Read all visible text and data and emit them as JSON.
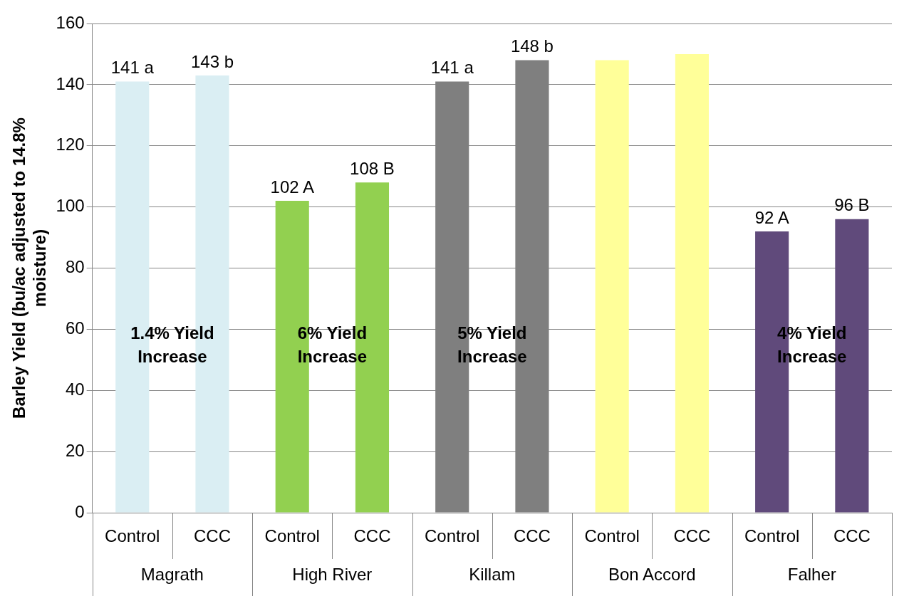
{
  "chart_data": {
    "type": "bar",
    "ylabel": "Barley Yield (bu/ac adjusted to 14.8% moisture)",
    "categories": [
      "Control",
      "CCC",
      "Control",
      "CCC",
      "Control",
      "CCC",
      "Control",
      "CCC",
      "Control",
      "CCC"
    ],
    "values": [
      141,
      143,
      102,
      108,
      141,
      148,
      148,
      150,
      92,
      96
    ],
    "colors": [
      "#daeef3",
      "#daeef3",
      "#92d050",
      "#92d050",
      "#7f7f7f",
      "#7f7f7f",
      "#ffff99",
      "#ffff99",
      "#604a7b",
      "#604a7b"
    ],
    "value_labels": [
      "141 a",
      "143 b",
      "102 A",
      "108 B",
      "141 a",
      "148 b",
      null,
      null,
      "92 A",
      "96 B"
    ],
    "ylim": [
      0,
      160
    ],
    "yticks": [
      0,
      20,
      40,
      60,
      80,
      100,
      120,
      140,
      160
    ],
    "grid": "y",
    "legend": false,
    "annotations": [
      "Magrath",
      "High River",
      "Killam",
      "Bon Accord",
      "Falher",
      "1.4% Yield Increase",
      "6% Yield Increase",
      "5% Yield Increase",
      "4% Yield Increase"
    ]
  }
}
